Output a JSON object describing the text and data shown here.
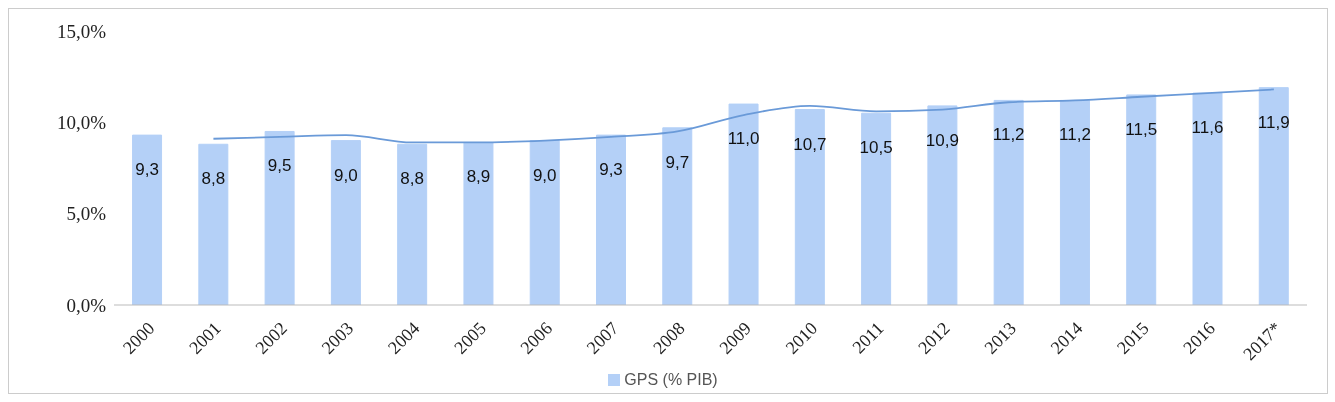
{
  "chart_data": {
    "type": "bar",
    "categories": [
      "2000",
      "2001",
      "2002",
      "2003",
      "2004",
      "2005",
      "2006",
      "2007",
      "2008",
      "2009",
      "2010",
      "2011",
      "2012",
      "2013",
      "2014",
      "2015",
      "2016",
      "2017*"
    ],
    "series": [
      {
        "name": "GPS (% PIB)",
        "color": "#b4d0f7",
        "values": [
          9.3,
          8.8,
          9.5,
          9.0,
          8.8,
          8.9,
          9.0,
          9.3,
          9.7,
          11.0,
          10.7,
          10.5,
          10.9,
          11.2,
          11.2,
          11.5,
          11.6,
          11.9
        ],
        "value_labels": [
          "9,3",
          "8,8",
          "9,5",
          "9,0",
          "8,8",
          "8,9",
          "9,0",
          "9,3",
          "9,7",
          "11,0",
          "10,7",
          "10,5",
          "10,9",
          "11,2",
          "11,2",
          "11,5",
          "11,6",
          "11,9"
        ]
      },
      {
        "type": "line",
        "color": "#6a9ad8",
        "values": [
          null,
          9.1,
          9.2,
          9.3,
          8.9,
          8.9,
          9.0,
          9.2,
          9.5,
          10.4,
          10.9,
          10.6,
          10.7,
          11.1,
          11.2,
          11.4,
          11.6,
          11.8
        ]
      }
    ],
    "ylim": [
      0,
      15
    ],
    "yticks": [
      {
        "value": 0,
        "label": "0,0%"
      },
      {
        "value": 5,
        "label": "5,0%"
      },
      {
        "value": 10,
        "label": "10,0%"
      },
      {
        "value": 15,
        "label": "15,0%"
      }
    ],
    "grid": false,
    "legend": "bottom",
    "marker": "none",
    "line_style": "solid"
  }
}
